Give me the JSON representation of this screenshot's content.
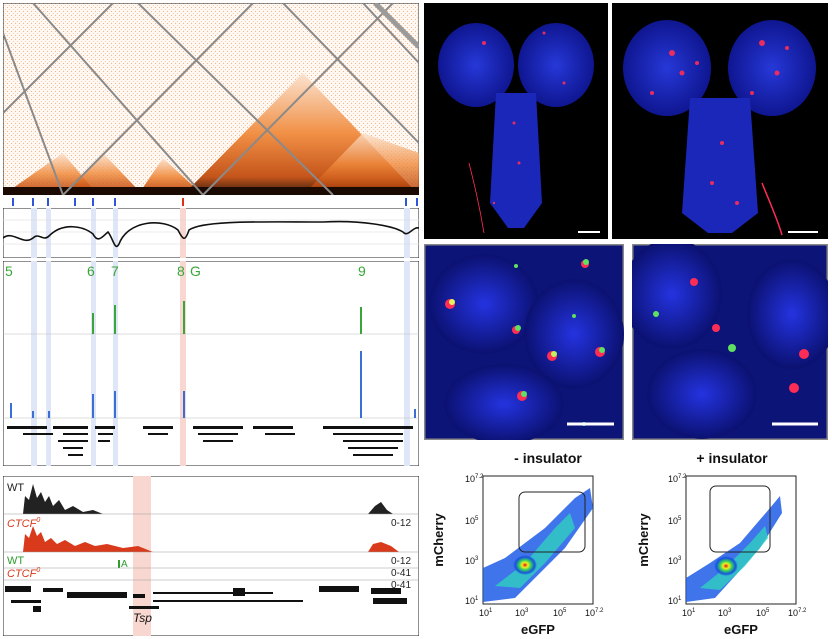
{
  "hic_panel": {
    "peak_labels": [
      "5",
      "6",
      "7",
      "8",
      "G",
      "9"
    ]
  },
  "coverage_panel": {
    "tracks": [
      {
        "label": "WT",
        "range": "0-12",
        "color": "#222222"
      },
      {
        "label": "CTCF",
        "sup": "0",
        "range": "0-12",
        "color": "#d93a1c"
      },
      {
        "label": "WT",
        "range": "0-41",
        "color": "#2f9e2f"
      },
      {
        "label": "CTCF",
        "sup": "0",
        "range": "0-41",
        "color": "#d93a1c"
      }
    ],
    "annotation_a": "A",
    "gene_label": "Tsp"
  },
  "facs_left": {
    "title": "- insulator",
    "ylabel": "mCherry",
    "xlabel": "eGFP",
    "y_ticks": [
      {
        "base": "10",
        "exp": "7.2"
      },
      {
        "base": "10",
        "exp": "5"
      },
      {
        "base": "10",
        "exp": "3"
      },
      {
        "base": "10",
        "exp": "1"
      }
    ],
    "x_ticks": [
      {
        "base": "10",
        "exp": "1"
      },
      {
        "base": "10",
        "exp": "3"
      },
      {
        "base": "10",
        "exp": "5"
      },
      {
        "base": "10",
        "exp": "7.2"
      }
    ]
  },
  "facs_right": {
    "title": "+ insulator",
    "ylabel": "mCherry",
    "xlabel": "eGFP",
    "y_ticks": [
      {
        "base": "10",
        "exp": "7.2"
      },
      {
        "base": "10",
        "exp": "5"
      },
      {
        "base": "10",
        "exp": "3"
      },
      {
        "base": "10",
        "exp": "1"
      }
    ],
    "x_ticks": [
      {
        "base": "10",
        "exp": "1"
      },
      {
        "base": "10",
        "exp": "3"
      },
      {
        "base": "10",
        "exp": "5"
      },
      {
        "base": "10",
        "exp": "7.2"
      }
    ]
  },
  "colors": {
    "hic": "#e06a1f",
    "peak_green": "#3aa63a",
    "peak_blue": "#3a6fd8",
    "highlight_blue": "#c9d6f2",
    "highlight_red": "#f7c9c3",
    "dapi": "#1b2bd6",
    "signal_red": "#ff2d55"
  }
}
